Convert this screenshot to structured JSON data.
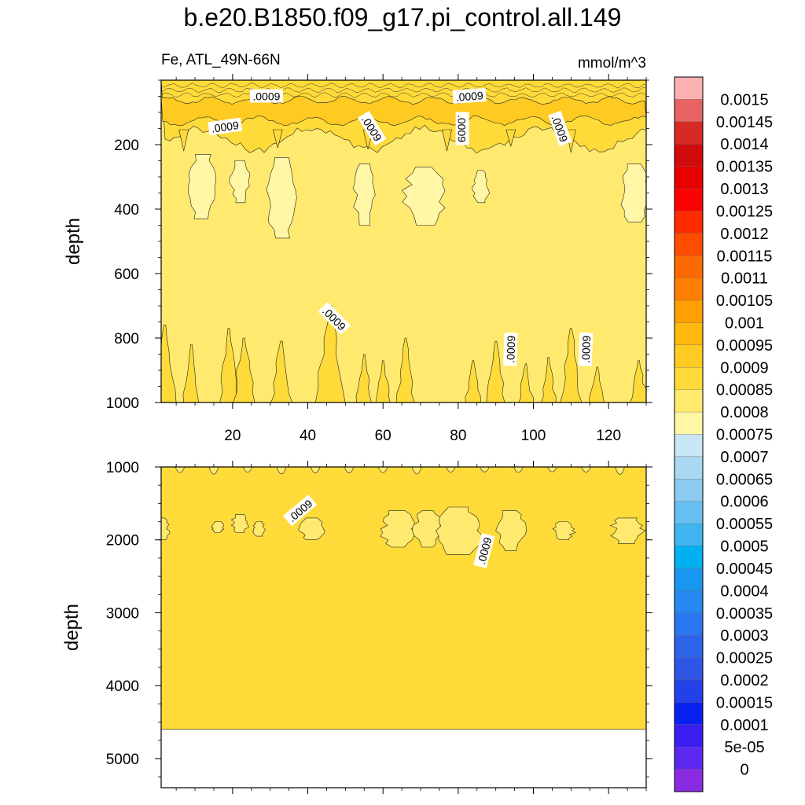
{
  "title": "b.e20.B1850.f09_g17.pi_control.all.149",
  "subtitle_left": "Fe, ATL_49N-66N",
  "subtitle_right": "mmol/m^3",
  "colorbar": {
    "levels": [
      "0.0015",
      "0.00145",
      "0.0014",
      "0.00135",
      "0.0013",
      "0.00125",
      "0.0012",
      "0.00115",
      "0.0011",
      "0.00105",
      "0.001",
      "0.00095",
      "0.0009",
      "0.00085",
      "0.0008",
      "0.00075",
      "0.0007",
      "0.00065",
      "0.0006",
      "0.00055",
      "0.0005",
      "0.00045",
      "0.0004",
      "0.00035",
      "0.0003",
      "0.00025",
      "0.0002",
      "0.00015",
      "0.0001",
      "5e-05",
      "0"
    ],
    "colors": [
      "#fbb1b1",
      "#e86464",
      "#d72a27",
      "#d10b0b",
      "#e80000",
      "#ff0000",
      "#ff2a00",
      "#ff4d00",
      "#ff6a00",
      "#ff8000",
      "#ffa000",
      "#ffb90f",
      "#ffca22",
      "#ffdb3a",
      "#ffea6f",
      "#fff6a6",
      "#c8e6f4",
      "#aad8f2",
      "#8ecbf0",
      "#66bff0",
      "#3fb5f0",
      "#00b0f0",
      "#1896f0",
      "#2688f0",
      "#2a75f0",
      "#2c63e8",
      "#2f55e6",
      "#2440e8",
      "#0a20f0",
      "#3a1ef0",
      "#5c28f0",
      "#8a2be2"
    ]
  },
  "chart_data": [
    {
      "type": "heatmap",
      "panel": "upper",
      "ylabel": "depth",
      "xlim": [
        1,
        130
      ],
      "ylim": [
        0,
        1000
      ],
      "y_inverted": true,
      "x_ticks": [
        "20",
        "40",
        "60",
        "80",
        "100",
        "120"
      ],
      "y_ticks": [
        "200",
        "400",
        "600",
        "800",
        "1000"
      ],
      "background_level": "0.00085",
      "contour_labels": [
        {
          "text": ".0009",
          "x": 29,
          "y": 50,
          "angle": 0
        },
        {
          "text": ".0009",
          "x": 83,
          "y": 50,
          "angle": -4
        },
        {
          "text": ".0009",
          "x": 18,
          "y": 145,
          "angle": -8
        },
        {
          "text": ".0009",
          "x": 57,
          "y": 150,
          "angle": 58
        },
        {
          "text": ".0009",
          "x": 81,
          "y": 150,
          "angle": 90
        },
        {
          "text": ".0009",
          "x": 107,
          "y": 150,
          "angle": 70
        },
        {
          "text": ".0009",
          "x": 47,
          "y": 740,
          "angle": 45
        },
        {
          "text": ".0009",
          "x": 94,
          "y": 835,
          "angle": -88
        },
        {
          "text": ".0009",
          "x": 114,
          "y": 835,
          "angle": -88
        }
      ]
    },
    {
      "type": "heatmap",
      "panel": "lower",
      "ylabel": "depth",
      "xlim": [
        1,
        130
      ],
      "ylim": [
        1000,
        5400
      ],
      "y_inverted": true,
      "y_ticks": [
        "1000",
        "2000",
        "3000",
        "4000",
        "5000"
      ],
      "background_level": "0.0009",
      "data_bottom_depth": 4600,
      "contour_labels": [
        {
          "text": ".0009",
          "x": 38,
          "y": 1600,
          "angle": -40
        },
        {
          "text": ".0009",
          "x": 87,
          "y": 2150,
          "angle": -75
        }
      ]
    }
  ]
}
